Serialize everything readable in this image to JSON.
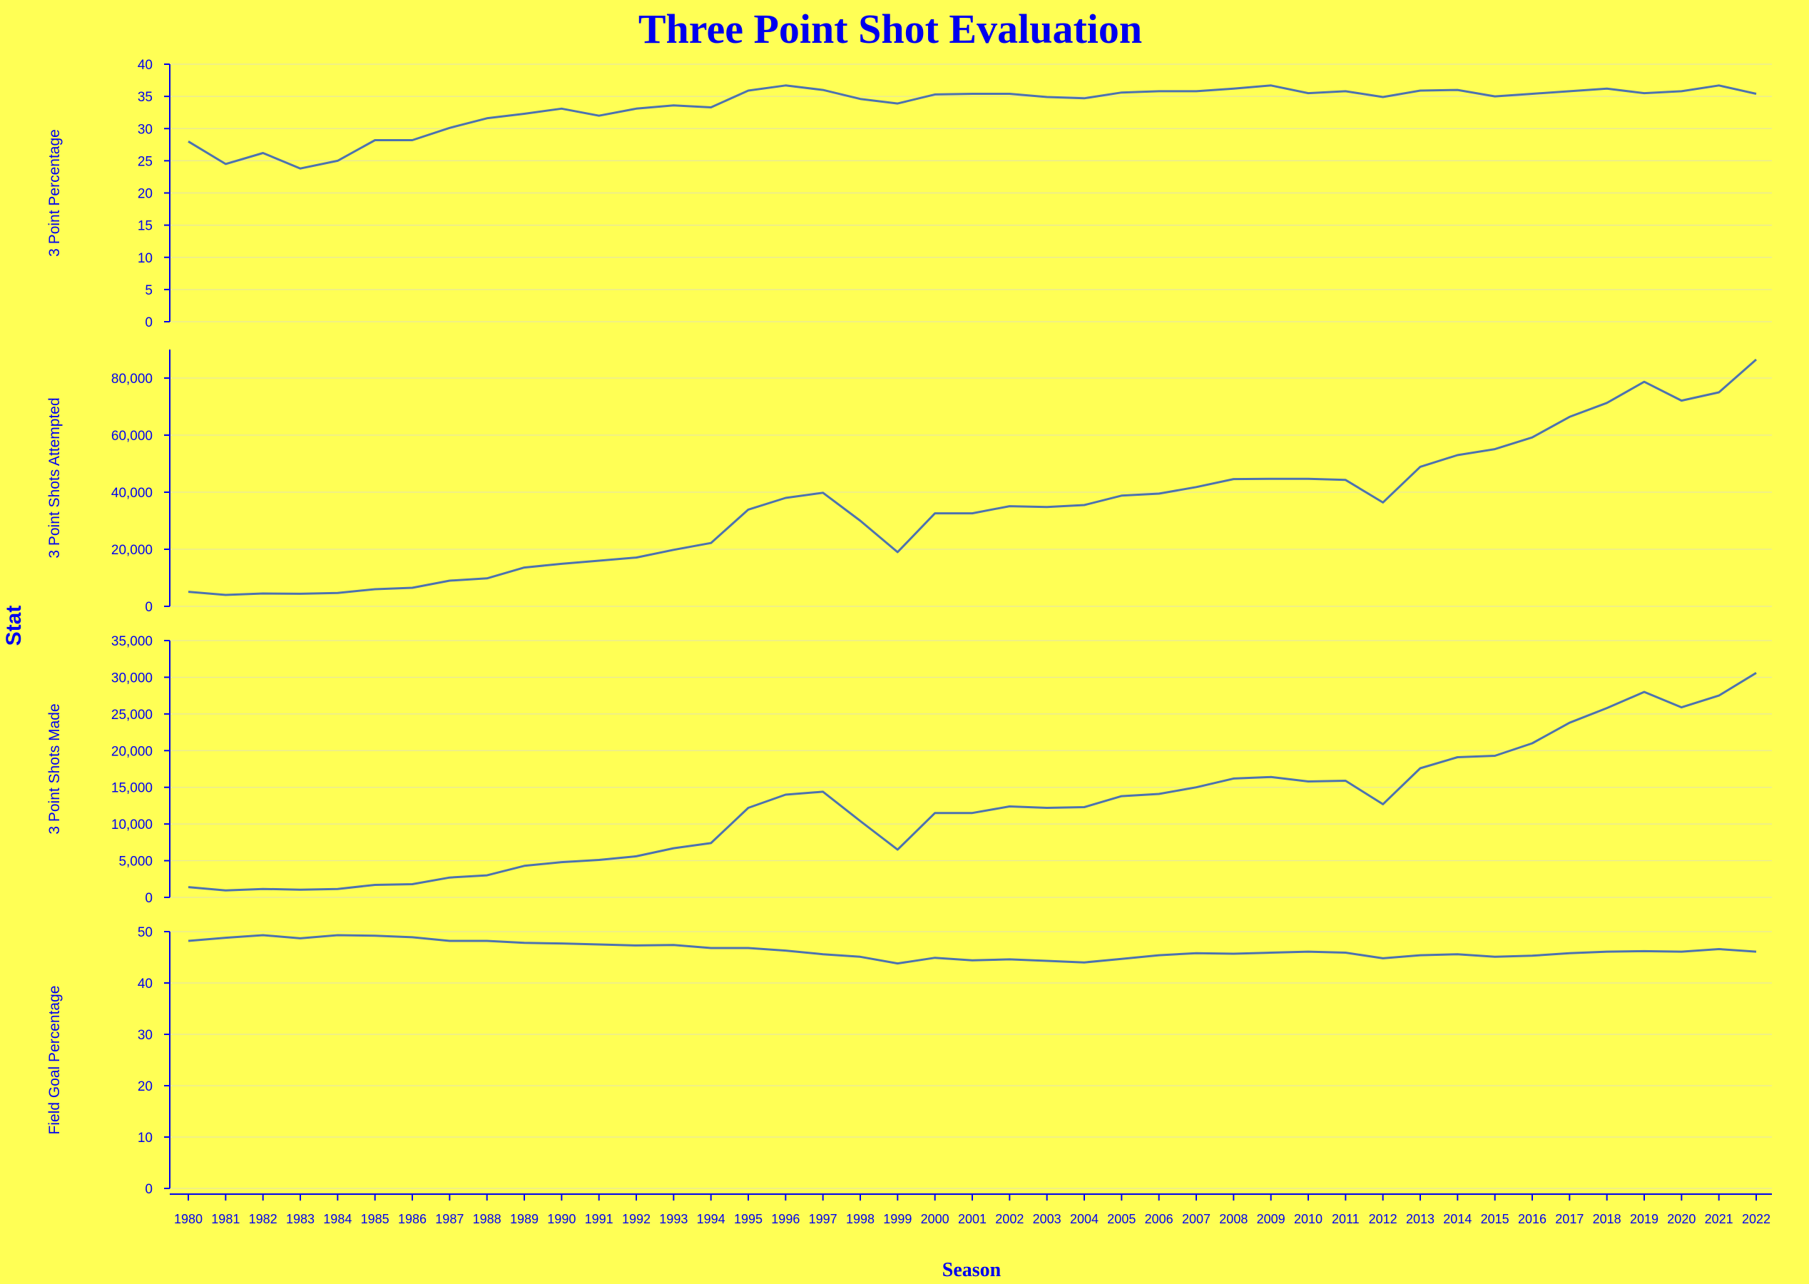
{
  "chart_data": {
    "type": "line",
    "title": "Three Point Shot Evaluation",
    "xlabel": "Season",
    "ylabel": "Stat",
    "grid": true,
    "colors": {
      "background": "#ffff55",
      "text": "#0000ee",
      "line": "#4c72b0",
      "grid": "#e6e6a0",
      "axis": "#0000ee"
    },
    "x": [
      1980,
      1981,
      1982,
      1983,
      1984,
      1985,
      1986,
      1987,
      1988,
      1989,
      1990,
      1991,
      1992,
      1993,
      1994,
      1995,
      1996,
      1997,
      1998,
      1999,
      2000,
      2001,
      2002,
      2003,
      2004,
      2005,
      2006,
      2007,
      2008,
      2009,
      2010,
      2011,
      2012,
      2013,
      2014,
      2015,
      2016,
      2017,
      2018,
      2019,
      2020,
      2021,
      2022
    ],
    "x_ticks": [
      "1980",
      "1981",
      "1982",
      "1983",
      "1984",
      "1985",
      "1986",
      "1987",
      "1988",
      "1989",
      "1990",
      "1991",
      "1992",
      "1993",
      "1994",
      "1995",
      "1996",
      "1997",
      "1998",
      "1999",
      "2000",
      "2001",
      "2002",
      "2003",
      "2004",
      "2005",
      "2006",
      "2007",
      "2008",
      "2009",
      "2010",
      "2011",
      "2012",
      "2013",
      "2014",
      "2015",
      "2016",
      "2017",
      "2018",
      "2019",
      "2020",
      "2021",
      "2022"
    ],
    "panels": [
      {
        "ylabel": "3 Point Percentage",
        "ylim": [
          0,
          40
        ],
        "yticks": [
          0,
          5,
          10,
          15,
          20,
          25,
          30,
          35,
          40
        ],
        "ytick_labels": [
          "0",
          "5",
          "10",
          "15",
          "20",
          "25",
          "30",
          "35",
          "40"
        ],
        "values": [
          28.0,
          24.5,
          26.2,
          23.8,
          25.0,
          28.2,
          28.2,
          30.1,
          31.6,
          32.3,
          33.1,
          32.0,
          33.1,
          33.6,
          33.3,
          35.9,
          36.7,
          36.0,
          34.6,
          33.9,
          35.3,
          35.4,
          35.4,
          34.9,
          34.7,
          35.6,
          35.8,
          35.8,
          36.2,
          36.7,
          35.5,
          35.8,
          34.9,
          35.9,
          36.0,
          35.0,
          35.4,
          35.8,
          36.2,
          35.5,
          35.8,
          36.7,
          35.4
        ]
      },
      {
        "ylabel": "3 Point Shots Attempted",
        "ylim": [
          0,
          90000
        ],
        "yticks": [
          0,
          20000,
          40000,
          60000,
          80000
        ],
        "ytick_labels": [
          "0",
          "20,000",
          "40,000",
          "60,000",
          "80,000"
        ],
        "values": [
          5100,
          4000,
          4500,
          4400,
          4700,
          6000,
          6500,
          9000,
          9800,
          13600,
          14900,
          16000,
          17100,
          19800,
          22200,
          33900,
          38000,
          39800,
          30000,
          19000,
          32600,
          32600,
          35100,
          34800,
          35500,
          38800,
          39500,
          41800,
          44600,
          44700,
          44700,
          44300,
          36400,
          48900,
          53000,
          55100,
          59200,
          66400,
          71300,
          78700,
          72100,
          75000,
          86500
        ]
      },
      {
        "ylabel": "3 Point Shots Made",
        "ylim": [
          0,
          35000
        ],
        "yticks": [
          0,
          5000,
          10000,
          15000,
          20000,
          25000,
          30000,
          35000
        ],
        "ytick_labels": [
          "0",
          "5,000",
          "10,000",
          "15,000",
          "20,000",
          "25,000",
          "30,000",
          "35,000"
        ],
        "values": [
          1400,
          950,
          1150,
          1050,
          1150,
          1700,
          1800,
          2700,
          3000,
          4300,
          4800,
          5100,
          5600,
          6700,
          7400,
          12200,
          14000,
          14400,
          10400,
          6500,
          11500,
          11500,
          12400,
          12200,
          12300,
          13800,
          14100,
          15000,
          16200,
          16400,
          15800,
          15900,
          12700,
          17600,
          19100,
          19300,
          21000,
          23800,
          25800,
          28000,
          25900,
          27500,
          30600
        ]
      },
      {
        "ylabel": "Field Goal Percentage",
        "ylim": [
          0,
          50
        ],
        "yticks": [
          0,
          10,
          20,
          30,
          40,
          50
        ],
        "ytick_labels": [
          "0",
          "10",
          "20",
          "30",
          "40",
          "50"
        ],
        "values": [
          48.2,
          48.8,
          49.3,
          48.7,
          49.3,
          49.2,
          48.9,
          48.2,
          48.2,
          47.8,
          47.7,
          47.5,
          47.3,
          47.4,
          46.8,
          46.8,
          46.3,
          45.6,
          45.1,
          43.8,
          44.9,
          44.4,
          44.6,
          44.3,
          44.0,
          44.7,
          45.4,
          45.8,
          45.7,
          45.9,
          46.1,
          45.9,
          44.8,
          45.4,
          45.6,
          45.1,
          45.3,
          45.8,
          46.1,
          46.2,
          46.1,
          46.6,
          46.1
        ]
      }
    ]
  }
}
